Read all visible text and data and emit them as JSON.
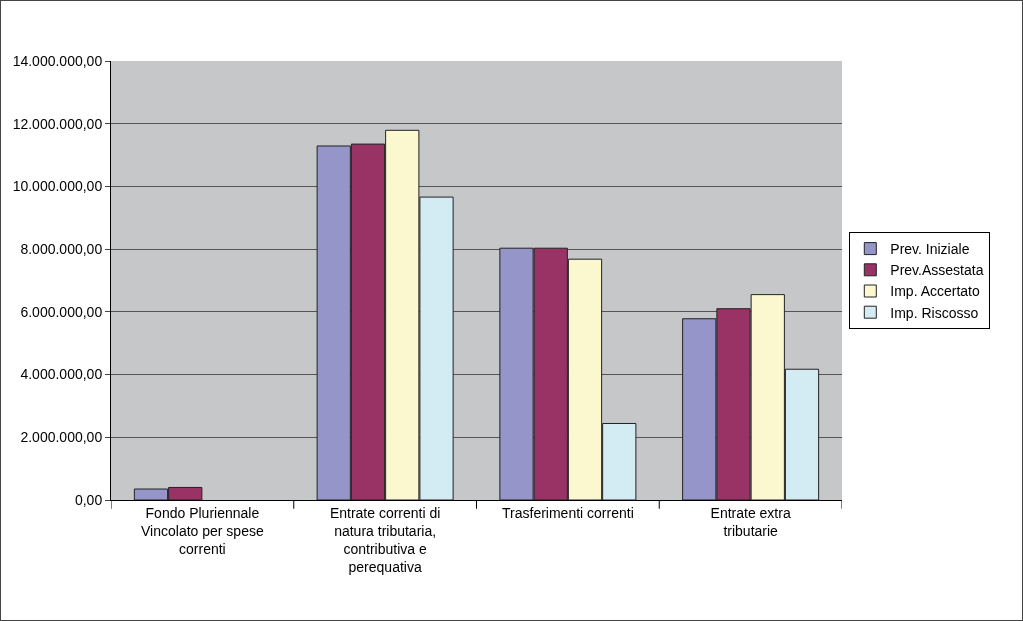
{
  "chart_data": {
    "type": "bar",
    "categories": [
      "Fondo Pluriennale Vincolato per spese correnti",
      "Entrate correnti di natura tributaria, contributiva e perequativa",
      "Trasferimenti correnti",
      "Entrate extra tributarie"
    ],
    "series": [
      {
        "name": "Prev. Iniziale",
        "color": "#9595c9",
        "values": [
          350000,
          11290000,
          8030000,
          5780000
        ]
      },
      {
        "name": "Prev.Assestata",
        "color": "#993366",
        "values": [
          400000,
          11350000,
          8030000,
          6100000
        ]
      },
      {
        "name": "Imp. Accertato",
        "color": "#fbf8d0",
        "values": [
          null,
          11790000,
          7680000,
          6550000
        ]
      },
      {
        "name": "Imp. Riscosso",
        "color": "#d3ebf3",
        "values": [
          null,
          9660000,
          2440000,
          4170000
        ]
      }
    ],
    "ylim": [
      0,
      14000000
    ],
    "yticks": [
      {
        "value": 0,
        "label": "0,00"
      },
      {
        "value": 2000000,
        "label": "2.000.000,00"
      },
      {
        "value": 4000000,
        "label": "4.000.000,00"
      },
      {
        "value": 6000000,
        "label": "6.000.000,00"
      },
      {
        "value": 8000000,
        "label": "8.000.000,00"
      },
      {
        "value": 10000000,
        "label": "10.000.000,00"
      },
      {
        "value": 12000000,
        "label": "12.000.000,00"
      },
      {
        "value": 14000000,
        "label": "14.000.000,00"
      }
    ],
    "grid": "y",
    "legend": "right"
  }
}
